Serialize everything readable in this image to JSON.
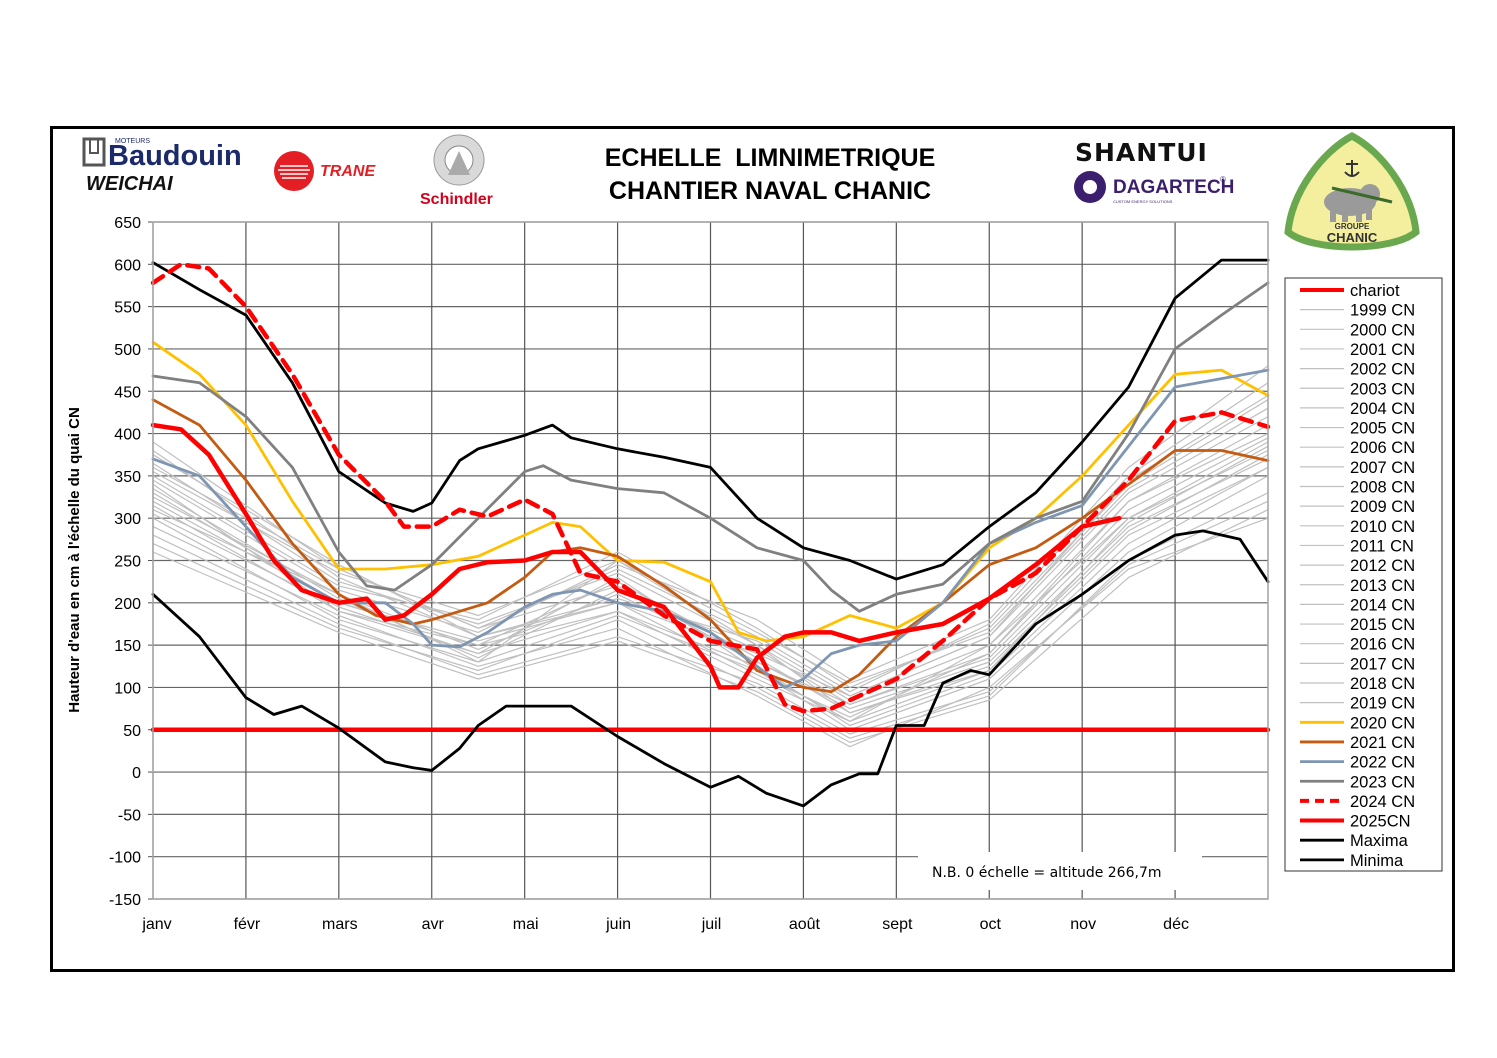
{
  "header": {
    "title_line1": "ECHELLE  LIMNIMETRIQUE",
    "title_line2": "CHANTIER NAVAL CHANIC"
  },
  "logos": {
    "baudouin": {
      "small": "MOTEURS",
      "name": "Baudouin",
      "color": "#1b2a6b"
    },
    "weichai": {
      "name": "WEICHAI",
      "color": "#111111"
    },
    "trane": {
      "name": "TRANE",
      "color": "#e31e24"
    },
    "schindler": {
      "name": "Schindler",
      "color": "#d0021b"
    },
    "shantui": {
      "name": "SHANTUI",
      "color": "#111111",
      "accent": "#f39200"
    },
    "dagartech": {
      "name": "DAGARTECH",
      "mark": "®",
      "tagline": "CUSTOM ENERGY SOLUTIONS",
      "color": "#3b1e6e"
    },
    "chanic": {
      "line1": "GROUPE",
      "line2": "CHANIC",
      "border": "#6aa84f",
      "fill": "#f3ef9e"
    }
  },
  "note": "N.B.  0 échelle = altitude 266,7m",
  "chart_data": {
    "type": "line",
    "title": "ECHELLE LIMNIMETRIQUE CHANTIER NAVAL CHANIC",
    "xlabel": "",
    "ylabel": "Hauteur d'eau en cm à l'échelle du quai CN",
    "ylim": [
      -150,
      650
    ],
    "xlim": [
      0,
      12
    ],
    "y_ticks": [
      -150,
      -100,
      -50,
      0,
      50,
      100,
      150,
      200,
      250,
      300,
      350,
      400,
      450,
      500,
      550,
      600,
      650
    ],
    "x_tick_labels": [
      "janv",
      "févr",
      "mars",
      "avr",
      "mai",
      "juin",
      "juil",
      "août",
      "sept",
      "oct",
      "nov",
      "déc"
    ],
    "grid": true,
    "legend_position": "right",
    "x_unit": "months since 1 January",
    "series": [
      {
        "name": "chariot",
        "color": "#ff0000",
        "style": "solid-thick",
        "x": [
          0,
          12
        ],
        "y": [
          50,
          50
        ]
      },
      {
        "name": "Maxima",
        "color": "#000000",
        "style": "solid",
        "x": [
          0,
          0.5,
          1,
          1.5,
          2,
          2.5,
          2.8,
          3,
          3.3,
          3.5,
          4,
          4.3,
          4.5,
          5,
          5.5,
          6,
          6.5,
          7,
          7.5,
          8,
          8.5,
          9,
          9.5,
          10,
          10.5,
          11,
          11.5,
          12
        ],
        "y": [
          602,
          570,
          540,
          460,
          355,
          318,
          308,
          318,
          368,
          382,
          398,
          410,
          395,
          382,
          372,
          360,
          300,
          265,
          250,
          228,
          245,
          290,
          330,
          390,
          455,
          560,
          605,
          605
        ]
      },
      {
        "name": "Minima",
        "color": "#000000",
        "style": "solid",
        "x": [
          0,
          0.5,
          1,
          1.3,
          1.6,
          2,
          2.5,
          2.8,
          3,
          3.3,
          3.5,
          3.8,
          4,
          4.5,
          5,
          5.5,
          6,
          6.3,
          6.6,
          7,
          7.3,
          7.6,
          7.8,
          8,
          8.3,
          8.5,
          8.8,
          9,
          9.5,
          10,
          10.5,
          11,
          11.3,
          11.7,
          12
        ],
        "y": [
          210,
          160,
          88,
          68,
          78,
          52,
          12,
          5,
          2,
          28,
          55,
          78,
          78,
          78,
          42,
          10,
          -18,
          -5,
          -25,
          -40,
          -15,
          -2,
          -2,
          55,
          55,
          105,
          120,
          115,
          175,
          210,
          250,
          280,
          285,
          275,
          225
        ]
      },
      {
        "name": "2020 CN",
        "color": "#ffc000",
        "style": "solid",
        "x": [
          0,
          0.5,
          1,
          1.5,
          2,
          2.5,
          3,
          3.5,
          4,
          4.3,
          4.6,
          5,
          5.5,
          6,
          6.3,
          6.6,
          7,
          7.5,
          8,
          8.5,
          9,
          9.5,
          10,
          10.5,
          11,
          11.5,
          12
        ],
        "y": [
          508,
          470,
          410,
          320,
          240,
          240,
          245,
          255,
          280,
          295,
          290,
          250,
          248,
          225,
          165,
          155,
          160,
          185,
          170,
          200,
          265,
          300,
          350,
          410,
          470,
          475,
          445
        ]
      },
      {
        "name": "2021 CN",
        "color": "#c55a11",
        "style": "solid",
        "x": [
          0,
          0.5,
          1,
          1.5,
          2,
          2.4,
          2.8,
          3,
          3.3,
          3.6,
          4,
          4.3,
          4.6,
          5,
          5.5,
          6,
          6.5,
          7,
          7.3,
          7.6,
          8,
          8.5,
          9,
          9.5,
          10,
          10.5,
          11,
          11.5,
          12
        ],
        "y": [
          440,
          410,
          345,
          270,
          210,
          185,
          175,
          180,
          190,
          200,
          230,
          260,
          265,
          255,
          220,
          180,
          120,
          100,
          95,
          115,
          160,
          200,
          245,
          265,
          300,
          340,
          380,
          380,
          368
        ]
      },
      {
        "name": "2022 CN",
        "color": "#7f96b2",
        "style": "solid",
        "x": [
          0,
          0.5,
          1,
          1.5,
          2,
          2.5,
          2.8,
          3,
          3.3,
          3.6,
          4,
          4.3,
          4.6,
          5,
          5.5,
          6,
          6.5,
          6.8,
          7,
          7.3,
          7.6,
          8,
          8.5,
          9,
          9.5,
          10,
          10.5,
          11,
          11.5,
          12
        ],
        "y": [
          370,
          350,
          290,
          230,
          200,
          200,
          175,
          150,
          148,
          165,
          195,
          210,
          215,
          200,
          190,
          165,
          125,
          100,
          110,
          140,
          150,
          155,
          200,
          270,
          295,
          315,
          385,
          455,
          465,
          475
        ]
      },
      {
        "name": "2023 CN",
        "color": "#808080",
        "style": "solid",
        "x": [
          0,
          0.5,
          1,
          1.5,
          2,
          2.3,
          2.6,
          3,
          3.5,
          4,
          4.2,
          4.5,
          5,
          5.5,
          6,
          6.5,
          7,
          7.3,
          7.6,
          8,
          8.5,
          9,
          9.5,
          10,
          10.5,
          11,
          11.5,
          12
        ],
        "y": [
          468,
          460,
          420,
          360,
          260,
          220,
          215,
          245,
          300,
          355,
          362,
          345,
          335,
          330,
          300,
          265,
          250,
          215,
          190,
          210,
          222,
          270,
          300,
          320,
          400,
          500,
          540,
          578
        ]
      },
      {
        "name": "2024 CN",
        "color": "#ff0000",
        "style": "dashed",
        "x": [
          0,
          0.3,
          0.6,
          1,
          1.5,
          2,
          2.5,
          2.7,
          3,
          3.3,
          3.6,
          4,
          4.3,
          4.6,
          5,
          5.5,
          6,
          6.5,
          6.8,
          7,
          7.3,
          7.6,
          8,
          8.5,
          9,
          9.5,
          10,
          10.5,
          11,
          11.5,
          12
        ],
        "y": [
          578,
          600,
          595,
          550,
          470,
          375,
          320,
          290,
          290,
          310,
          302,
          322,
          305,
          235,
          225,
          185,
          155,
          145,
          80,
          72,
          75,
          90,
          110,
          155,
          205,
          235,
          290,
          345,
          415,
          425,
          408
        ]
      },
      {
        "name": "2025CN",
        "color": "#ff0000",
        "style": "solid-thick",
        "x": [
          0,
          0.3,
          0.6,
          1,
          1.3,
          1.6,
          2,
          2.3,
          2.5,
          2.7,
          3,
          3.3,
          3.6,
          4,
          4.3,
          4.6,
          5,
          5.5,
          6,
          6.1,
          6.3,
          6.5,
          6.8,
          7,
          7.3,
          7.6,
          8,
          8.5,
          9,
          9.5,
          10,
          10.4
        ],
        "y": [
          410,
          405,
          375,
          305,
          250,
          215,
          200,
          205,
          180,
          185,
          210,
          240,
          248,
          250,
          260,
          260,
          215,
          195,
          125,
          100,
          100,
          135,
          160,
          165,
          165,
          155,
          165,
          175,
          205,
          245,
          290,
          300
        ]
      },
      {
        "name": "1999 CN",
        "color": "#c0c0c0",
        "style": "thin",
        "x": [
          0,
          2,
          3.5,
          5,
          6.5,
          7.5,
          9,
          10.5,
          12
        ],
        "y": [
          360,
          240,
          170,
          220,
          130,
          80,
          140,
          320,
          400
        ]
      },
      {
        "name": "2000 CN",
        "color": "#c0c0c0",
        "style": "thin",
        "x": [
          0,
          2,
          3.5,
          5,
          6.5,
          7.5,
          9,
          10.5,
          12
        ],
        "y": [
          330,
          200,
          150,
          190,
          110,
          60,
          150,
          300,
          380
        ]
      },
      {
        "name": "2001 CN",
        "color": "#c0c0c0",
        "style": "thin",
        "x": [
          0,
          2,
          3.5,
          5,
          6.5,
          7.5,
          9,
          10.5,
          12
        ],
        "y": [
          300,
          180,
          130,
          250,
          150,
          70,
          120,
          280,
          360
        ]
      },
      {
        "name": "2002 CN",
        "color": "#c0c0c0",
        "style": "thin",
        "x": [
          0,
          2,
          3.5,
          5,
          6.5,
          7.5,
          9,
          10.5,
          12
        ],
        "y": [
          380,
          230,
          160,
          200,
          140,
          90,
          160,
          330,
          420
        ]
      },
      {
        "name": "2003 CN",
        "color": "#c0c0c0",
        "style": "thin",
        "x": [
          0,
          2,
          3.5,
          5,
          6.5,
          7.5,
          9,
          10.5,
          12
        ],
        "y": [
          340,
          190,
          140,
          230,
          120,
          50,
          110,
          260,
          350
        ]
      },
      {
        "name": "2004 CN",
        "color": "#c0c0c0",
        "style": "thin",
        "x": [
          0,
          2,
          3.5,
          5,
          6.5,
          7.5,
          9,
          10.5,
          12
        ],
        "y": [
          270,
          170,
          120,
          180,
          100,
          40,
          90,
          250,
          330
        ]
      },
      {
        "name": "2005 CN",
        "color": "#c0c0c0",
        "style": "thin",
        "x": [
          0,
          2,
          3.5,
          5,
          6.5,
          7.5,
          9,
          10.5,
          12
        ],
        "y": [
          350,
          220,
          180,
          260,
          170,
          100,
          170,
          340,
          440
        ]
      },
      {
        "name": "2006 CN",
        "color": "#c0c0c0",
        "style": "thin",
        "x": [
          0,
          2,
          3.5,
          5,
          6.5,
          7.5,
          9,
          10.5,
          12
        ],
        "y": [
          310,
          210,
          145,
          210,
          130,
          75,
          130,
          290,
          370
        ]
      },
      {
        "name": "2007 CN",
        "color": "#c0c0c0",
        "style": "thin",
        "x": [
          0,
          2,
          3.5,
          5,
          6.5,
          7.5,
          9,
          10.5,
          12
        ],
        "y": [
          390,
          240,
          170,
          240,
          160,
          95,
          175,
          350,
          460
        ]
      },
      {
        "name": "2008 CN",
        "color": "#c0c0c0",
        "style": "thin",
        "x": [
          0,
          2,
          3.5,
          5,
          6.5,
          7.5,
          9,
          10.5,
          12
        ],
        "y": [
          320,
          200,
          155,
          200,
          115,
          65,
          140,
          310,
          395
        ]
      },
      {
        "name": "2009 CN",
        "color": "#c0c0c0",
        "style": "thin",
        "x": [
          0,
          2,
          3.5,
          5,
          6.5,
          7.5,
          9,
          10.5,
          12
        ],
        "y": [
          290,
          185,
          125,
          170,
          90,
          30,
          100,
          240,
          300
        ]
      },
      {
        "name": "2010 CN",
        "color": "#c0c0c0",
        "style": "thin",
        "x": [
          0,
          2,
          3.5,
          5,
          6.5,
          7.5,
          9,
          10.5,
          12
        ],
        "y": [
          345,
          215,
          165,
          245,
          180,
          110,
          180,
          360,
          480
        ]
      },
      {
        "name": "2011 CN",
        "color": "#c0c0c0",
        "style": "thin",
        "x": [
          0,
          2,
          3.5,
          5,
          6.5,
          7.5,
          9,
          10.5,
          12
        ],
        "y": [
          305,
          195,
          140,
          190,
          125,
          55,
          115,
          270,
          360
        ]
      },
      {
        "name": "2012 CN",
        "color": "#c0c0c0",
        "style": "thin",
        "x": [
          0,
          2,
          3.5,
          5,
          6.5,
          7.5,
          9,
          10.5,
          12
        ],
        "y": [
          365,
          225,
          175,
          235,
          150,
          85,
          150,
          320,
          410
        ]
      },
      {
        "name": "2013 CN",
        "color": "#c0c0c0",
        "style": "thin",
        "x": [
          0,
          2,
          3.5,
          5,
          6.5,
          7.5,
          9,
          10.5,
          12
        ],
        "y": [
          335,
          205,
          135,
          215,
          145,
          80,
          135,
          300,
          390
        ]
      },
      {
        "name": "2014 CN",
        "color": "#c0c0c0",
        "style": "thin",
        "x": [
          0,
          2,
          3.5,
          5,
          6.5,
          7.5,
          9,
          10.5,
          12
        ],
        "y": [
          280,
          175,
          115,
          160,
          105,
          45,
          95,
          245,
          320
        ]
      },
      {
        "name": "2015 CN",
        "color": "#c0c0c0",
        "style": "thin",
        "x": [
          0,
          2,
          3.5,
          5,
          6.5,
          7.5,
          9,
          10.5,
          12
        ],
        "y": [
          355,
          235,
          185,
          250,
          165,
          105,
          165,
          335,
          430
        ]
      },
      {
        "name": "2016 CN",
        "color": "#c0c0c0",
        "style": "thin",
        "x": [
          0,
          2,
          3.5,
          5,
          6.5,
          7.5,
          9,
          10.5,
          12
        ],
        "y": [
          315,
          190,
          150,
          225,
          135,
          70,
          125,
          285,
          375
        ]
      },
      {
        "name": "2017 CN",
        "color": "#c0c0c0",
        "style": "thin",
        "x": [
          0,
          2,
          3.5,
          5,
          6.5,
          7.5,
          9,
          10.5,
          12
        ],
        "y": [
          375,
          245,
          160,
          205,
          155,
          90,
          160,
          345,
          445
        ]
      },
      {
        "name": "2018 CN",
        "color": "#c0c0c0",
        "style": "thin",
        "x": [
          0,
          2,
          3.5,
          5,
          6.5,
          7.5,
          9,
          10.5,
          12
        ],
        "y": [
          325,
          210,
          130,
          185,
          120,
          60,
          120,
          295,
          385
        ]
      },
      {
        "name": "2019 CN",
        "color": "#c0c0c0",
        "style": "thin",
        "x": [
          0,
          2,
          3.5,
          5,
          6.5,
          7.5,
          9,
          10.5,
          12
        ],
        "y": [
          260,
          165,
          110,
          155,
          95,
          35,
          85,
          230,
          310
        ]
      }
    ],
    "legend": [
      "chariot",
      "1999 CN",
      "2000 CN",
      "2001 CN",
      "2002 CN",
      "2003 CN",
      "2004 CN",
      "2005 CN",
      "2006 CN",
      "2007 CN",
      "2008 CN",
      "2009 CN",
      "2010 CN",
      "2011 CN",
      "2012 CN",
      "2013 CN",
      "2014 CN",
      "2015 CN",
      "2016 CN",
      "2017 CN",
      "2018 CN",
      "2019 CN",
      "2020 CN",
      "2021 CN",
      "2022 CN",
      "2023 CN",
      "2024 CN",
      "2025CN",
      "Maxima",
      "Minima"
    ],
    "annotations": [
      "N.B.  0 échelle = altitude 266,7m"
    ]
  }
}
